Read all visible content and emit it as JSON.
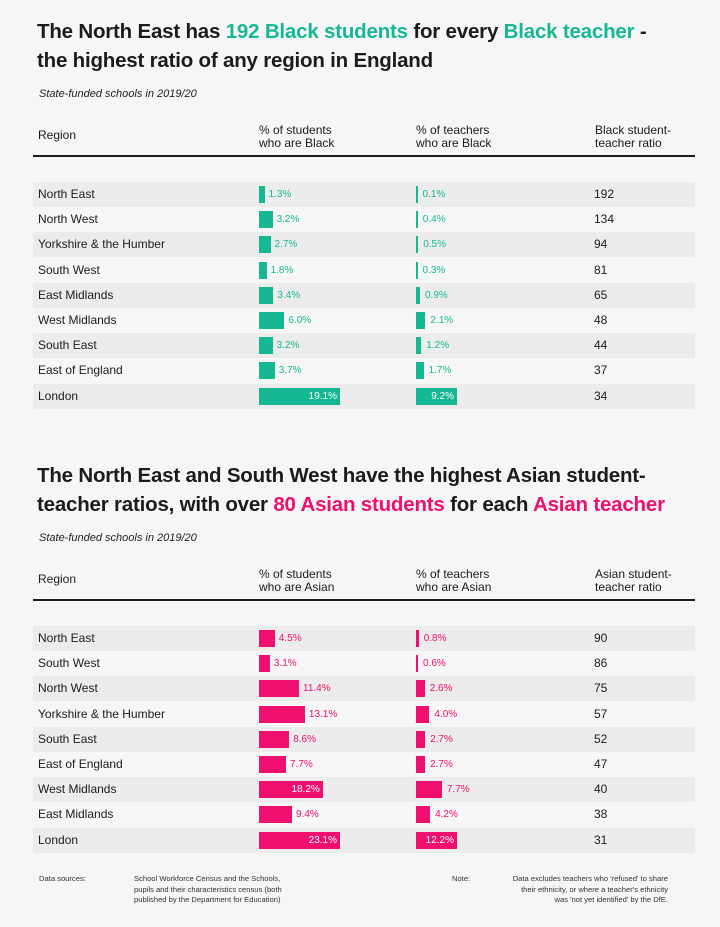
{
  "chart_data": [
    {
      "type": "table",
      "title_parts": [
        {
          "text": "The North East has ",
          "hl": false
        },
        {
          "text": "192 Black students",
          "hl": true
        },
        {
          "text": " for every ",
          "hl": false
        },
        {
          "text": "Black teacher",
          "hl": true
        },
        {
          "text": " -",
          "hl": false
        },
        {
          "text": "the highest ratio of any region in England",
          "hl": false,
          "break": true
        }
      ],
      "subtitle": "State-funded schools in 2019/20",
      "headers": {
        "region": "Region",
        "students": [
          "% of students",
          "who are Black"
        ],
        "teachers": [
          "% of teachers",
          "who are Black"
        ],
        "ratio": [
          "Black student-",
          "teacher ratio"
        ]
      },
      "accent": "#16b894",
      "student_max": 19.1,
      "teacher_max": 9.2,
      "rows": [
        {
          "region": "North East",
          "students": 1.3,
          "students_label": "1.3%",
          "teachers": 0.1,
          "teachers_label": "0.1%",
          "ratio": "192"
        },
        {
          "region": "North West",
          "students": 3.2,
          "students_label": "3.2%",
          "teachers": 0.4,
          "teachers_label": "0.4%",
          "ratio": "134"
        },
        {
          "region": "Yorkshire & the Humber",
          "students": 2.7,
          "students_label": "2.7%",
          "teachers": 0.5,
          "teachers_label": "0.5%",
          "ratio": "94"
        },
        {
          "region": "South West",
          "students": 1.8,
          "students_label": "1.8%",
          "teachers": 0.3,
          "teachers_label": "0.3%",
          "ratio": "81"
        },
        {
          "region": "East Midlands",
          "students": 3.4,
          "students_label": "3.4%",
          "teachers": 0.9,
          "teachers_label": "0.9%",
          "ratio": "65"
        },
        {
          "region": "West Midlands",
          "students": 6.0,
          "students_label": "6.0%",
          "teachers": 2.1,
          "teachers_label": "2.1%",
          "ratio": "48"
        },
        {
          "region": "South East",
          "students": 3.2,
          "students_label": "3.2%",
          "teachers": 1.2,
          "teachers_label": "1.2%",
          "ratio": "44"
        },
        {
          "region": "East of England",
          "students": 3.7,
          "students_label": "3.7%",
          "teachers": 1.7,
          "teachers_label": "1.7%",
          "ratio": "37"
        },
        {
          "region": "London",
          "students": 19.1,
          "students_label": "19.1%",
          "teachers": 9.2,
          "teachers_label": "9.2%",
          "ratio": "34"
        }
      ]
    },
    {
      "type": "table",
      "title_parts": [
        {
          "text": "The North East and South West have the highest Asian student-",
          "hl": false
        },
        {
          "text": "teacher ratios, with over ",
          "hl": false,
          "break": true
        },
        {
          "text": "80 Asian students",
          "hl": true
        },
        {
          "text": " for each ",
          "hl": false
        },
        {
          "text": "Asian teacher",
          "hl": true
        }
      ],
      "subtitle": "State-funded schools in 2019/20",
      "headers": {
        "region": "Region",
        "students": [
          "% of students",
          "who are Asian"
        ],
        "teachers": [
          "% of teachers",
          "who are Asian"
        ],
        "ratio": [
          "Asian student-",
          "teacher ratio"
        ]
      },
      "accent": "#ee0f6f",
      "student_max": 23.1,
      "teacher_max": 12.2,
      "rows": [
        {
          "region": "North East",
          "students": 4.5,
          "students_label": "4.5%",
          "teachers": 0.8,
          "teachers_label": "0.8%",
          "ratio": "90"
        },
        {
          "region": "South West",
          "students": 3.1,
          "students_label": "3.1%",
          "teachers": 0.6,
          "teachers_label": "0.6%",
          "ratio": "86"
        },
        {
          "region": "North West",
          "students": 11.4,
          "students_label": "11.4%",
          "teachers": 2.6,
          "teachers_label": "2.6%",
          "ratio": "75"
        },
        {
          "region": "Yorkshire & the Humber",
          "students": 13.1,
          "students_label": "13.1%",
          "teachers": 4.0,
          "teachers_label": "4.0%",
          "ratio": "57"
        },
        {
          "region": "South East",
          "students": 8.6,
          "students_label": "8.6%",
          "teachers": 2.7,
          "teachers_label": "2.7%",
          "ratio": "52"
        },
        {
          "region": "East of England",
          "students": 7.7,
          "students_label": "7.7%",
          "teachers": 2.7,
          "teachers_label": "2.7%",
          "ratio": "47"
        },
        {
          "region": "West Midlands",
          "students": 18.2,
          "students_label": "18.2%",
          "teachers": 7.7,
          "teachers_label": "7.7%",
          "ratio": "40"
        },
        {
          "region": "East Midlands",
          "students": 9.4,
          "students_label": "9.4%",
          "teachers": 4.2,
          "teachers_label": "4.2%",
          "ratio": "38"
        },
        {
          "region": "London",
          "students": 23.1,
          "students_label": "23.1%",
          "teachers": 12.2,
          "teachers_label": "12.2%",
          "ratio": "31"
        }
      ]
    }
  ],
  "footer": {
    "sources_label": "Data sources:",
    "sources_text": [
      "School Workforce Census and the Schools,",
      "pupils and their characteristics census (both",
      "published by the Department for Education)"
    ],
    "note_label": "Note:",
    "note_text": [
      "Data excludes teachers who 'refused' to share",
      "their ethnicity, or where a teacher's ethnicity",
      "was 'not yet identified' by the DfE."
    ]
  }
}
